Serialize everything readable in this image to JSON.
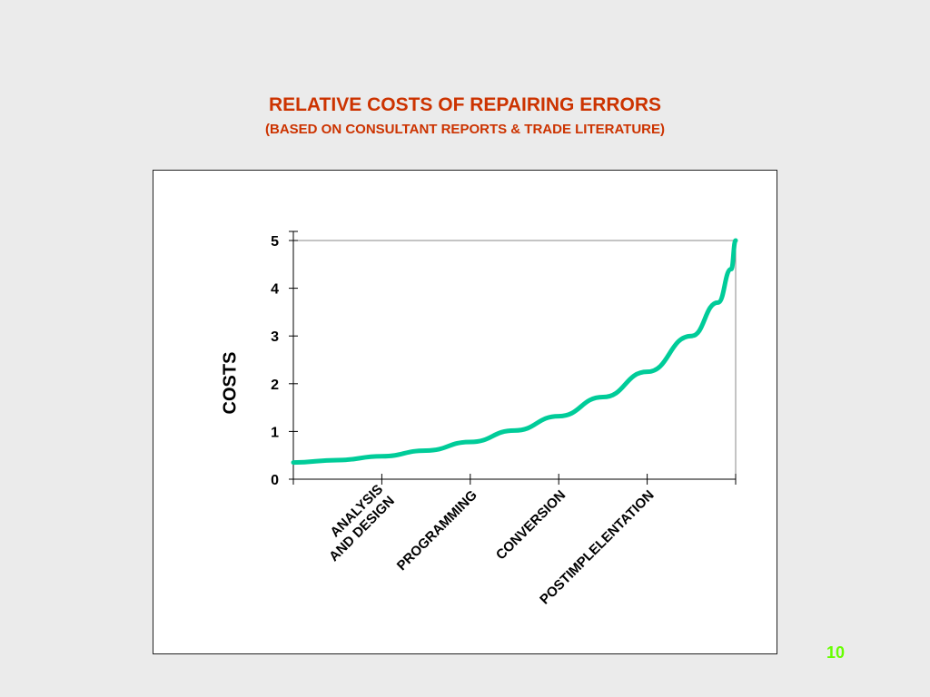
{
  "slide": {
    "title": "RELATIVE COSTS OF REPAIRING ERRORS",
    "subtitle": "(BASED ON CONSULTANT REPORTS & TRADE LITERATURE)",
    "page_number": "10"
  },
  "colors": {
    "title": "#cc3300",
    "curve": "#00cc99",
    "page_number": "#66ff00",
    "background": "#ebebeb"
  },
  "chart_data": {
    "type": "line",
    "title": "RELATIVE COSTS OF REPAIRING ERRORS",
    "subtitle": "(BASED ON CONSULTANT REPORTS & TRADE LITERATURE)",
    "xlabel": "",
    "ylabel": "COSTS",
    "ylim": [
      0,
      5
    ],
    "yticks": [
      "0",
      "1",
      "2",
      "3",
      "4",
      "5"
    ],
    "categories": [
      [
        "ANALYSIS",
        "AND DESIGN"
      ],
      [
        "PROGRAMMING"
      ],
      [
        "CONVERSION"
      ],
      [
        "POSTIMPLELENTATION"
      ]
    ],
    "series": [
      {
        "x": [
          0,
          0.5,
          1.0,
          1.5,
          2.0,
          2.5,
          3.0,
          3.5,
          4.0,
          4.5,
          4.8,
          4.95,
          5.0
        ],
        "values": [
          0.35,
          0.4,
          0.48,
          0.6,
          0.78,
          1.02,
          1.32,
          1.72,
          2.25,
          3.0,
          3.7,
          4.4,
          5.0
        ]
      }
    ],
    "grid": false,
    "legend": "none"
  }
}
